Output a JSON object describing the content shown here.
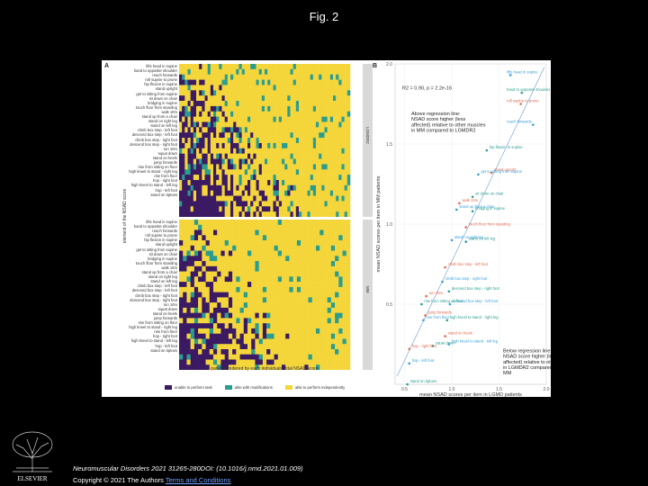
{
  "page": {
    "title": "Fig. 2"
  },
  "figure": {
    "panel_a": "A",
    "panel_b": "B",
    "y_axis_title": "element of the NSAD score",
    "x_axis_title": "patients ordered by each individuals total NSAD score",
    "strip_top": "LGMDR2",
    "strip_bottom": "MM",
    "item_labels": [
      "lifts head in supine",
      "hand to opposite shoulder",
      "reach forwards",
      "roll supine to prone",
      "hip flexion in supine",
      "stand upright",
      "get to sitting from supine",
      "sit down on chair",
      "bridging in supine",
      "touch floor from standing",
      "walk 10m",
      "stand up from a chair",
      "stand on right leg",
      "stand on left leg",
      "climb box step - left foot",
      "descend box step - left foot",
      "climb box step - right foot",
      "descend box step - right foot",
      "run 10m",
      "squat down",
      "stand on heels",
      "jump forwards",
      "rise from sitting on floor",
      "high kneel to stand - right leg",
      "rise from floor",
      "hop - right foot",
      "high kneel to stand - left leg",
      "hop - left foot",
      "stand on tiptoes"
    ],
    "legend": [
      {
        "label": "unable to perform task",
        "color": "#3b1a63"
      },
      {
        "label": "able with modifications",
        "color": "#2a9d8f"
      },
      {
        "label": "able to perform independently",
        "color": "#f5d63a"
      }
    ]
  },
  "chart_data": {
    "type": "scatter",
    "xlabel": "mean NSAD scores per item in LGMD patients",
    "ylabel": "mean NSAD scores per item in MM patients",
    "xlim": [
      0.4,
      2.0
    ],
    "ylim": [
      0.0,
      2.0
    ],
    "x_ticks": [
      "0.5",
      "1.0",
      "1.5",
      "2.0"
    ],
    "y_ticks": [
      "0.5",
      "1.0",
      "1.5",
      "2.0"
    ],
    "stat_text": "R2 = 0.90, p = 2.2e-16",
    "annotation_above": "Above regression line:\nNSAD score higher (less\naffected) relative to other muscles\nin MM compared to LGMDR2",
    "annotation_below": "Below regression line:\nNSAD score higher (less\naffected) relative to other muscles\nin LGMDR2 compared to\nMM",
    "points": [
      {
        "label": "lifts head in supine",
        "x": 1.62,
        "y": 1.93
      },
      {
        "label": "hand to opposite shoulder",
        "x": 1.74,
        "y": 1.82
      },
      {
        "label": "roll supine to prone",
        "x": 1.73,
        "y": 1.75
      },
      {
        "label": "reach forwards",
        "x": 1.86,
        "y": 1.62
      },
      {
        "label": "hip flexion in supine",
        "x": 1.37,
        "y": 1.46
      },
      {
        "label": "stand upright",
        "x": 1.42,
        "y": 1.32
      },
      {
        "label": "get to sitting from supine",
        "x": 1.28,
        "y": 1.31
      },
      {
        "label": "sit down on chair",
        "x": 1.22,
        "y": 1.17
      },
      {
        "label": "walk 10m",
        "x": 1.08,
        "y": 1.13
      },
      {
        "label": "stand up from a chair",
        "x": 1.05,
        "y": 1.09
      },
      {
        "label": "bridging in supine",
        "x": 1.22,
        "y": 1.08
      },
      {
        "label": "touch floor from standing",
        "x": 1.15,
        "y": 0.98
      },
      {
        "label": "stand on right leg",
        "x": 1.0,
        "y": 0.9
      },
      {
        "label": "stand on left leg",
        "x": 1.15,
        "y": 0.89
      },
      {
        "label": "climb box step - left foot",
        "x": 0.93,
        "y": 0.73
      },
      {
        "label": "climb box step - right foot",
        "x": 0.9,
        "y": 0.64
      },
      {
        "label": "descend box step - right foot",
        "x": 0.97,
        "y": 0.58
      },
      {
        "label": "run 10m",
        "x": 0.73,
        "y": 0.55
      },
      {
        "label": "descend box step - left foot",
        "x": 0.98,
        "y": 0.5
      },
      {
        "label": "rise from sitting on floor",
        "x": 0.68,
        "y": 0.5
      },
      {
        "label": "jump forwards",
        "x": 0.72,
        "y": 0.43
      },
      {
        "label": "rise from floor",
        "x": 0.7,
        "y": 0.4
      },
      {
        "label": "high kneel to stand - right leg",
        "x": 0.95,
        "y": 0.4
      },
      {
        "label": "stand on heels",
        "x": 0.93,
        "y": 0.3
      },
      {
        "label": "high kneel to stand - left leg",
        "x": 0.97,
        "y": 0.25
      },
      {
        "label": "squat down",
        "x": 0.8,
        "y": 0.24
      },
      {
        "label": "hop - right foot",
        "x": 0.55,
        "y": 0.22
      },
      {
        "label": "hop - left foot",
        "x": 0.55,
        "y": 0.13
      },
      {
        "label": "stand on tiptoes",
        "x": 0.53,
        "y": 0.0
      }
    ]
  },
  "footer": {
    "citation": "Neuromuscular Disorders 2021 31265-280DOI: (10.1016/j.nmd.2021.01.009)",
    "copyright": "Copyright © 2021 The Authors",
    "link_text": "Terms and Conditions",
    "publisher": "ELSEVIER"
  }
}
